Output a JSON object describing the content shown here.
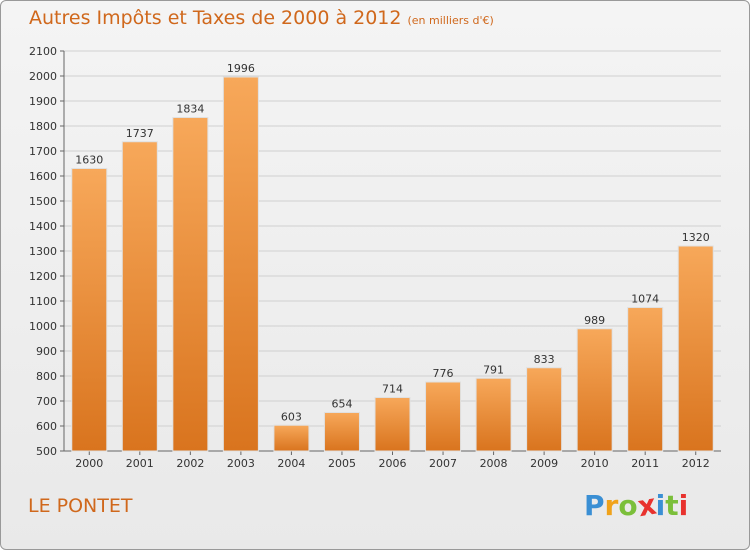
{
  "header": {
    "title": "Autres Impôts et Taxes de 2000 à 2012",
    "subtitle": "(en milliers d'€)"
  },
  "footer": {
    "place": "LE PONTET",
    "logo_letters": [
      "P",
      "r",
      "o",
      "x",
      "i",
      "t",
      "i"
    ],
    "logo_colors": [
      "#3a8fd4",
      "#f0a21a",
      "#7bbf3a",
      "#e8322e",
      "#3a8fd4",
      "#7bbf3a",
      "#e8322e"
    ]
  },
  "colors": {
    "bar_light": "#f7a85a",
    "bar_dark": "#d9741e",
    "title": "#d0681c",
    "grid": "#d0d0d0",
    "axis": "#666666"
  },
  "chart_data": {
    "type": "bar",
    "categories": [
      "2000",
      "2001",
      "2002",
      "2003",
      "2004",
      "2005",
      "2006",
      "2007",
      "2008",
      "2009",
      "2010",
      "2011",
      "2012"
    ],
    "values": [
      1630,
      1737,
      1834,
      1996,
      603,
      654,
      714,
      776,
      791,
      833,
      989,
      1074,
      1320
    ],
    "yticks": [
      500,
      600,
      700,
      800,
      900,
      1000,
      1100,
      1200,
      1300,
      1400,
      1500,
      1600,
      1700,
      1800,
      1900,
      2000,
      2100
    ],
    "ylim": [
      500,
      2100
    ],
    "grid": true,
    "data_labels": true
  }
}
